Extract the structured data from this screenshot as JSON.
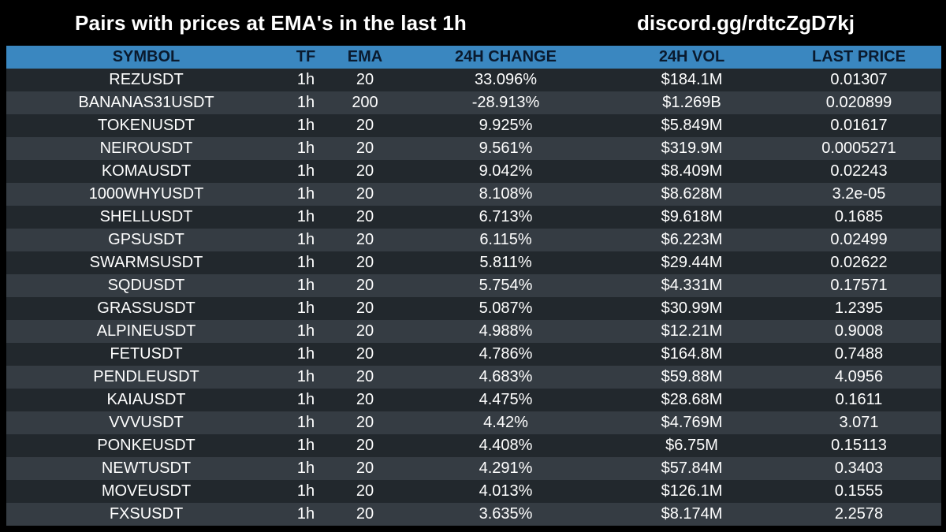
{
  "title": "Pairs with prices at EMA's in the last 1h",
  "discord": "discord.gg/rdtcZgD7kj",
  "columns": {
    "symbol": "SYMBOL",
    "tf": "TF",
    "ema": "EMA",
    "change": "24H CHANGE",
    "vol": "24H VOL",
    "price": "LAST PRICE"
  },
  "colors": {
    "background": "#000000",
    "header_bar": "#3a87c0",
    "row_dark": "#22282d",
    "row_light": "#353c43"
  },
  "rows": [
    {
      "symbol": "REZUSDT",
      "tf": "1h",
      "ema": "20",
      "change": "33.096%",
      "vol": "$184.1M",
      "price": "0.01307"
    },
    {
      "symbol": "BANANAS31USDT",
      "tf": "1h",
      "ema": "200",
      "change": "-28.913%",
      "vol": "$1.269B",
      "price": "0.020899"
    },
    {
      "symbol": "TOKENUSDT",
      "tf": "1h",
      "ema": "20",
      "change": "9.925%",
      "vol": "$5.849M",
      "price": "0.01617"
    },
    {
      "symbol": "NEIROUSDT",
      "tf": "1h",
      "ema": "20",
      "change": "9.561%",
      "vol": "$319.9M",
      "price": "0.0005271"
    },
    {
      "symbol": "KOMAUSDT",
      "tf": "1h",
      "ema": "20",
      "change": "9.042%",
      "vol": "$8.409M",
      "price": "0.02243"
    },
    {
      "symbol": "1000WHYUSDT",
      "tf": "1h",
      "ema": "20",
      "change": "8.108%",
      "vol": "$8.628M",
      "price": "3.2e-05"
    },
    {
      "symbol": "SHELLUSDT",
      "tf": "1h",
      "ema": "20",
      "change": "6.713%",
      "vol": "$9.618M",
      "price": "0.1685"
    },
    {
      "symbol": "GPSUSDT",
      "tf": "1h",
      "ema": "20",
      "change": "6.115%",
      "vol": "$6.223M",
      "price": "0.02499"
    },
    {
      "symbol": "SWARMSUSDT",
      "tf": "1h",
      "ema": "20",
      "change": "5.811%",
      "vol": "$29.44M",
      "price": "0.02622"
    },
    {
      "symbol": "SQDUSDT",
      "tf": "1h",
      "ema": "20",
      "change": "5.754%",
      "vol": "$4.331M",
      "price": "0.17571"
    },
    {
      "symbol": "GRASSUSDT",
      "tf": "1h",
      "ema": "20",
      "change": "5.087%",
      "vol": "$30.99M",
      "price": "1.2395"
    },
    {
      "symbol": "ALPINEUSDT",
      "tf": "1h",
      "ema": "20",
      "change": "4.988%",
      "vol": "$12.21M",
      "price": "0.9008"
    },
    {
      "symbol": "FETUSDT",
      "tf": "1h",
      "ema": "20",
      "change": "4.786%",
      "vol": "$164.8M",
      "price": "0.7488"
    },
    {
      "symbol": "PENDLEUSDT",
      "tf": "1h",
      "ema": "20",
      "change": "4.683%",
      "vol": "$59.88M",
      "price": "4.0956"
    },
    {
      "symbol": "KAIAUSDT",
      "tf": "1h",
      "ema": "20",
      "change": "4.475%",
      "vol": "$28.68M",
      "price": "0.1611"
    },
    {
      "symbol": "VVVUSDT",
      "tf": "1h",
      "ema": "20",
      "change": "4.42%",
      "vol": "$4.769M",
      "price": "3.071"
    },
    {
      "symbol": "PONKEUSDT",
      "tf": "1h",
      "ema": "20",
      "change": "4.408%",
      "vol": "$6.75M",
      "price": "0.15113"
    },
    {
      "symbol": "NEWTUSDT",
      "tf": "1h",
      "ema": "20",
      "change": "4.291%",
      "vol": "$57.84M",
      "price": "0.3403"
    },
    {
      "symbol": "MOVEUSDT",
      "tf": "1h",
      "ema": "20",
      "change": "4.013%",
      "vol": "$126.1M",
      "price": "0.1555"
    },
    {
      "symbol": "FXSUSDT",
      "tf": "1h",
      "ema": "20",
      "change": "3.635%",
      "vol": "$8.174M",
      "price": "2.2578"
    }
  ]
}
